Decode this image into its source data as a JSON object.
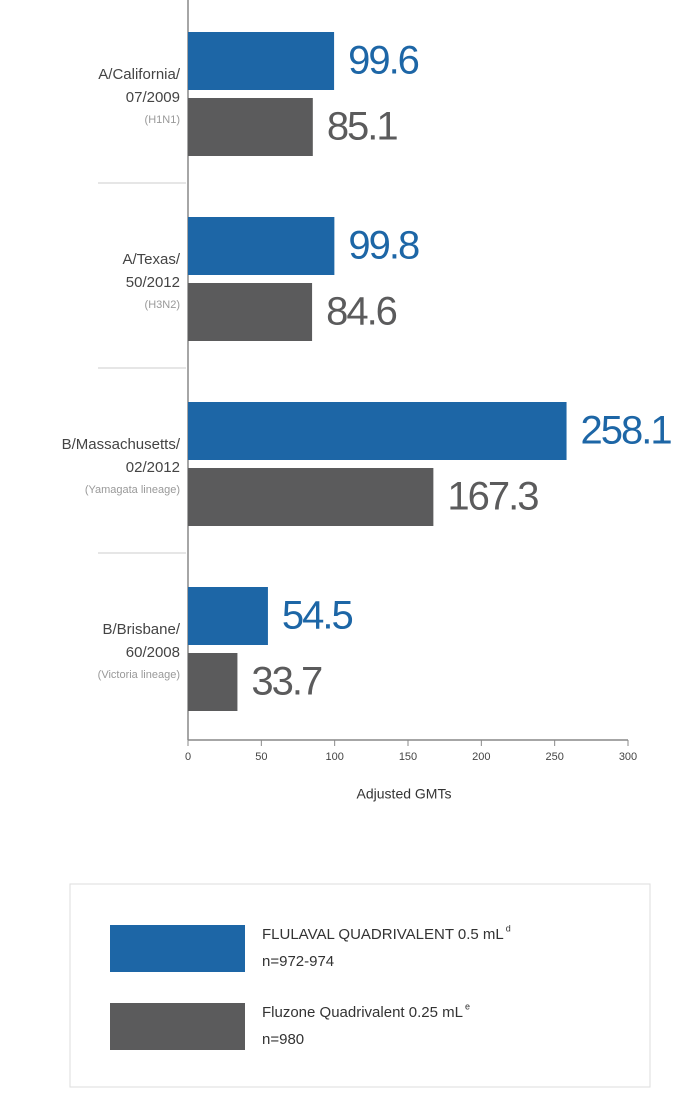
{
  "chart_data": {
    "type": "hbar",
    "categories": [
      [
        "A/California/",
        "07/2009"
      ],
      [
        "A/Texas/",
        "50/2012"
      ],
      [
        "B/Massachusetts/",
        "02/2012"
      ],
      [
        "B/Brisbane/",
        "60/2008"
      ]
    ],
    "lineages": [
      "(H1N1)",
      "(H3N2)",
      "(Yamagata lineage)",
      "(Victoria lineage)"
    ],
    "series": [
      {
        "name": "FLULAVAL QUADRIVALENT 0.5 mL",
        "superscript": "d",
        "n": "n=972-974",
        "color": "#1d66a6",
        "values": [
          99.6,
          99.8,
          258.1,
          54.5
        ]
      },
      {
        "name": "Fluzone Quadrivalent 0.25 mL",
        "superscript": "e",
        "n": "n=980",
        "color": "#5b5b5c",
        "values": [
          85.1,
          84.6,
          167.3,
          33.7
        ]
      }
    ],
    "xlabel": "Adjusted GMTs",
    "xlim": [
      0,
      300
    ],
    "xticks": [
      0,
      50,
      100,
      150,
      200,
      250,
      300
    ],
    "grid": false
  }
}
